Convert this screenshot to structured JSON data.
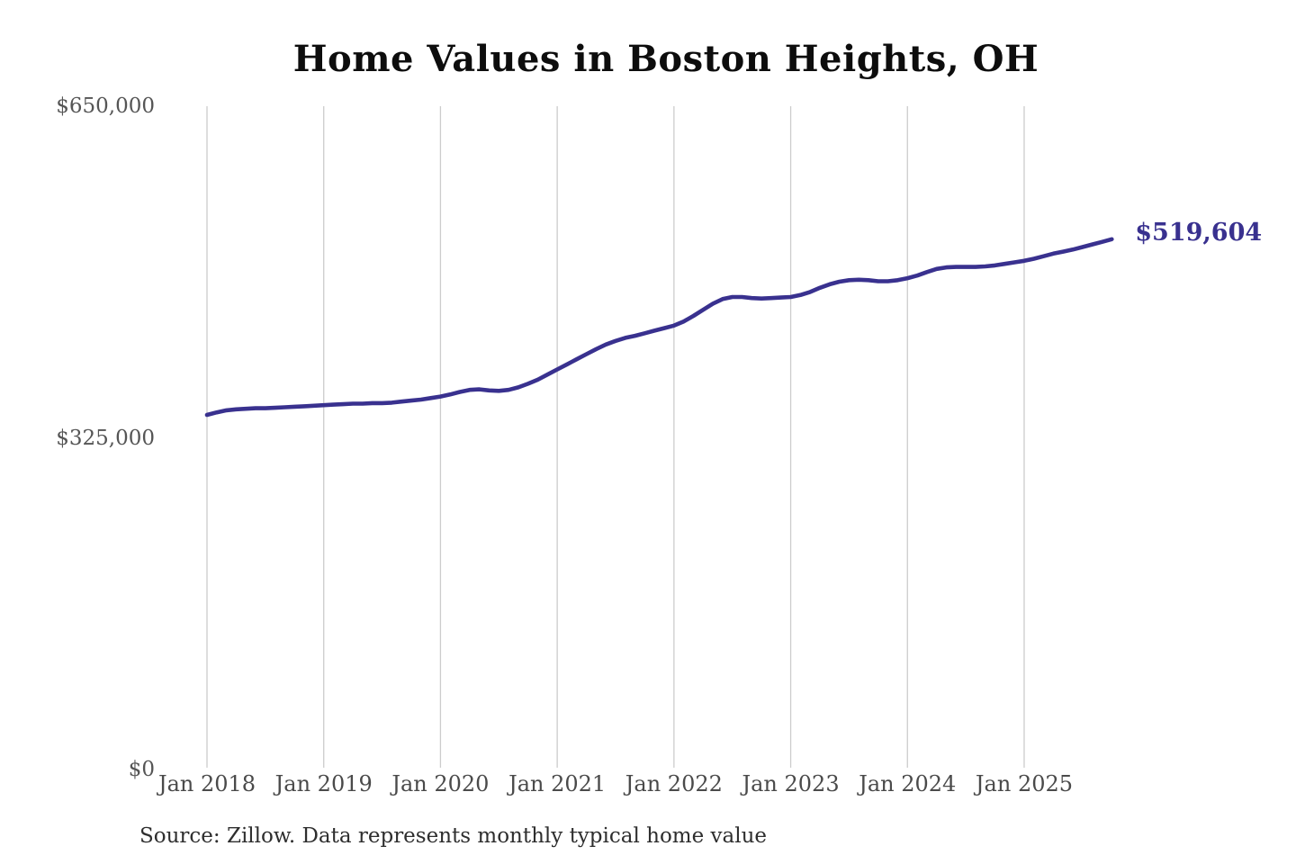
{
  "chart_data": {
    "type": "line",
    "title": "Home Values in Boston Heights, OH",
    "ylabel": "",
    "xlabel": "",
    "ylim": [
      0,
      650000
    ],
    "grid": "vertical-only",
    "legend_position": "none",
    "y_ticks": [
      {
        "label": "$0",
        "value": 0
      },
      {
        "label": "$325,000",
        "value": 325000
      },
      {
        "label": "$650,000",
        "value": 650000
      }
    ],
    "x_ticks": [
      "Jan 2018",
      "Jan 2019",
      "Jan 2020",
      "Jan 2021",
      "Jan 2022",
      "Jan 2023",
      "Jan 2024",
      "Jan 2025"
    ],
    "x_start": "Jan 2018",
    "x_interval": "monthly",
    "end_label": "$519,604",
    "latest_value": 519604,
    "line_color": "#39318f",
    "grid_color": "#cccccc",
    "series": [
      {
        "name": "Monthly typical home value",
        "values": [
          347500,
          350000,
          352000,
          353000,
          353500,
          354000,
          354000,
          354500,
          355000,
          355500,
          356000,
          356500,
          357000,
          357500,
          358000,
          358500,
          358500,
          359000,
          359000,
          359500,
          360500,
          361500,
          362500,
          364000,
          365500,
          367500,
          370000,
          372000,
          372500,
          371500,
          371000,
          372000,
          374500,
          378000,
          382000,
          387000,
          392000,
          397000,
          402000,
          407000,
          412000,
          416500,
          420000,
          423000,
          425000,
          427500,
          430000,
          432500,
          435000,
          439000,
          444500,
          450500,
          456500,
          461000,
          463000,
          463000,
          462000,
          461500,
          462000,
          462500,
          463000,
          465000,
          468000,
          472000,
          475500,
          478000,
          479500,
          480000,
          479500,
          478500,
          478500,
          479500,
          481500,
          484000,
          487500,
          490500,
          492000,
          492500,
          492500,
          492500,
          493000,
          494000,
          495500,
          497000,
          498500,
          500500,
          503000,
          505500,
          507500,
          509500,
          512000,
          514500,
          517000,
          519604
        ]
      }
    ],
    "source": "Source: Zillow. Data represents monthly typical home value"
  }
}
